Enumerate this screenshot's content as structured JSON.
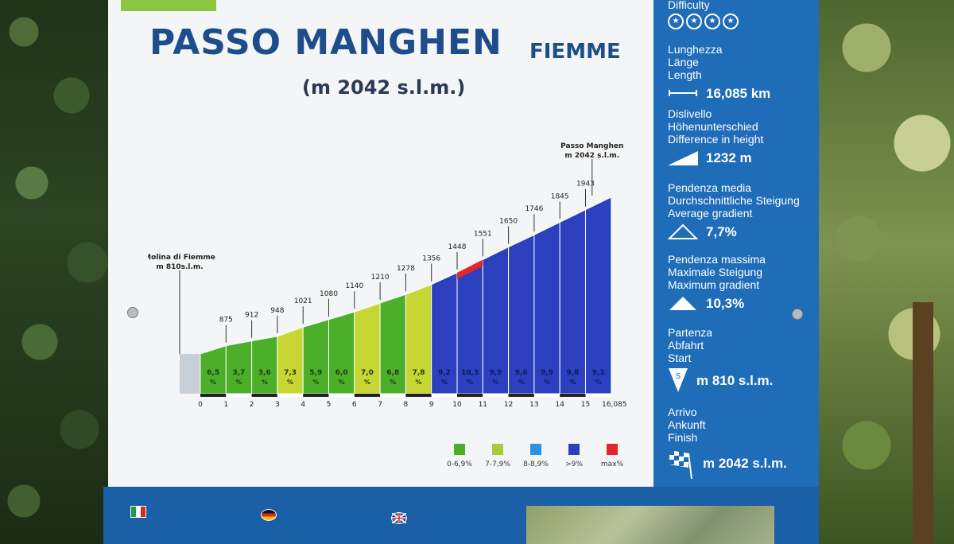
{
  "sign": {
    "title": "PASSO MANGHEN",
    "subtitle": "FIEMME",
    "altitude": "(m 2042 s.l.m.)"
  },
  "profile": {
    "start_label_1": "Molina di Fiemme",
    "start_label_2": "m 810s.l.m.",
    "end_label_1": "Passo Manghen",
    "end_label_2": "m 2042 s.l.m.",
    "km_ticks": [
      "0",
      "1",
      "2",
      "3",
      "4",
      "5",
      "6",
      "7",
      "8",
      "9",
      "10",
      "11",
      "12",
      "13",
      "14",
      "15",
      "16,085"
    ],
    "elevations": [
      "875",
      "912",
      "948",
      "1021",
      "1080",
      "1140",
      "1210",
      "1278",
      "1356",
      "1448",
      "1551",
      "1650",
      "1746",
      "1845",
      "1943"
    ],
    "gradients": [
      "6,5",
      "3,7",
      "3,6",
      "7,3",
      "5,9",
      "6,0",
      "7,0",
      "6,8",
      "7,8",
      "9,2",
      "10,3",
      "9,9",
      "9,6",
      "9,9",
      "9,8",
      "9,1"
    ],
    "gradient_unit": "%",
    "segment_colors": [
      "#4caf2a",
      "#4caf2a",
      "#4caf2a",
      "#c8d633",
      "#4caf2a",
      "#4caf2a",
      "#c8d633",
      "#4caf2a",
      "#c8d633",
      "#2b3fbf",
      "#2b3fbf",
      "#2b3fbf",
      "#2b3fbf",
      "#2b3fbf",
      "#2b3fbf",
      "#2b3fbf"
    ]
  },
  "legend": [
    {
      "color": "#4caf2a",
      "label": "0-6,9%"
    },
    {
      "color": "#a9cc3a",
      "label": "7-7,9%"
    },
    {
      "color": "#2f8fe0",
      "label": "8-8,9%"
    },
    {
      "color": "#2b3fbf",
      "label": ">9%"
    },
    {
      "color": "#e2262b",
      "label": "max%"
    }
  ],
  "stats": {
    "difficulty": "Difficulty",
    "length_1": "Lunghezza",
    "length_2": "Länge",
    "length_3": "Length",
    "length_val": "16,085 km",
    "diff_1": "Dislivello",
    "diff_2": "Höhenunterschied",
    "diff_3": "Difference in height",
    "diff_val": "1232 m",
    "avg_1": "Pendenza media",
    "avg_2": "Durchschnittliche Steigung",
    "avg_3": "Average gradient",
    "avg_val": "7,7%",
    "max_1": "Pendenza massima",
    "max_2": "Maximale Steigung",
    "max_3": "Maximum gradient",
    "max_val": "10,3%",
    "start_1": "Partenza",
    "start_2": "Abfahrt",
    "start_3": "Start",
    "start_val": "m 810 s.l.m.",
    "finish_1": "Arrivo",
    "finish_2": "Ankunft",
    "finish_3": "Finish",
    "finish_val": "m 2042 s.l.m."
  },
  "colors": {
    "sign_blue": "#1f6cb8",
    "title_blue": "#1e4d8c",
    "panel": "#f4f5f6"
  }
}
